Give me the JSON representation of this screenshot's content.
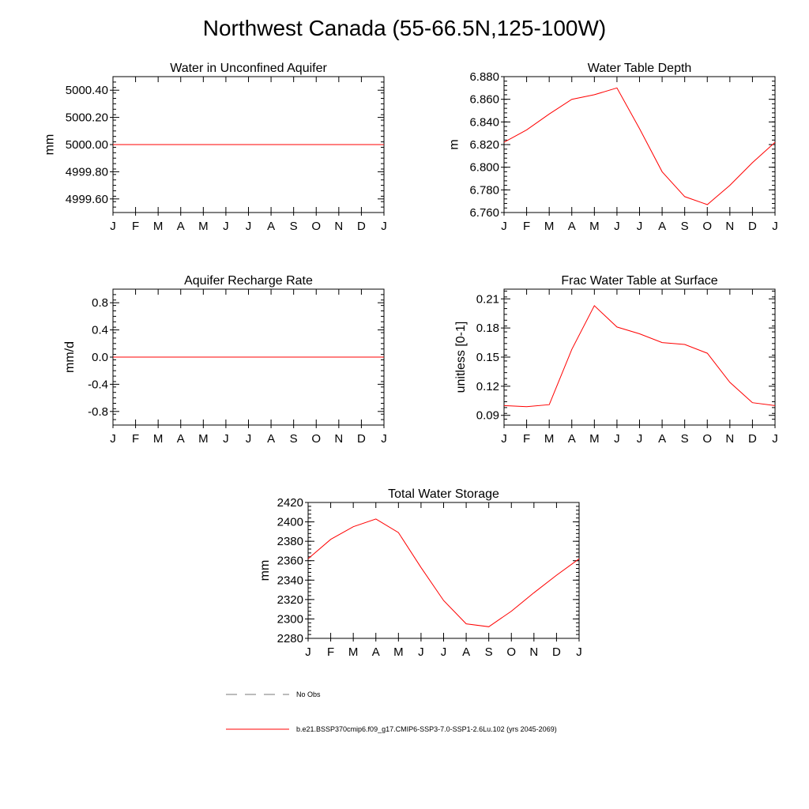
{
  "title": "Northwest Canada (55-66.5N,125-100W)",
  "months": [
    "J",
    "F",
    "M",
    "A",
    "M",
    "J",
    "J",
    "A",
    "S",
    "O",
    "N",
    "D",
    "J"
  ],
  "series_color": "#ff0000",
  "obs_color": "#777777",
  "legend": {
    "obs_label": "No Obs",
    "model_label": "b.e21.BSSP370cmip6.f09_g17.CMIP6-SSP3-7.0-SSP1-2.6Lu.102 (yrs 2045-2069)"
  },
  "chart_data": [
    {
      "type": "line",
      "title": "Water in Unconfined Aquifer",
      "ylabel": "mm",
      "ylim": [
        4999.5,
        5000.5
      ],
      "yticks": [
        4999.6,
        4999.8,
        5000.0,
        5000.2,
        5000.4
      ],
      "ytick_labels": [
        "4999.60",
        "4999.80",
        "5000.00",
        "5000.20",
        "5000.40"
      ],
      "series": [
        {
          "values": [
            5000,
            5000,
            5000,
            5000,
            5000,
            5000,
            5000,
            5000,
            5000,
            5000,
            5000,
            5000,
            5000
          ]
        }
      ]
    },
    {
      "type": "line",
      "title": "Water Table Depth",
      "ylabel": "m",
      "ylim": [
        6.76,
        6.88
      ],
      "yticks": [
        6.76,
        6.78,
        6.8,
        6.82,
        6.84,
        6.86,
        6.88
      ],
      "ytick_labels": [
        "6.760",
        "6.780",
        "6.800",
        "6.820",
        "6.840",
        "6.860",
        "6.880"
      ],
      "series": [
        {
          "values": [
            6.822,
            6.833,
            6.847,
            6.86,
            6.864,
            6.87,
            6.834,
            6.796,
            6.774,
            6.767,
            6.784,
            6.804,
            6.822
          ]
        }
      ]
    },
    {
      "type": "line",
      "title": "Aquifer Recharge Rate",
      "ylabel": "mm/d",
      "ylim": [
        -1.0,
        1.0
      ],
      "yticks": [
        -0.8,
        -0.4,
        0.0,
        0.4,
        0.8
      ],
      "ytick_labels": [
        "-0.8",
        "-0.4",
        "0.0",
        "0.4",
        "0.8"
      ],
      "series": [
        {
          "values": [
            0,
            0,
            0,
            0,
            0,
            0,
            0,
            0,
            0,
            0,
            0,
            0,
            0
          ]
        }
      ]
    },
    {
      "type": "line",
      "title": "Frac Water Table at Surface",
      "ylabel": "unitless [0-1]",
      "ylim": [
        0.08,
        0.22
      ],
      "yticks": [
        0.09,
        0.12,
        0.15,
        0.18,
        0.21
      ],
      "ytick_labels": [
        "0.09",
        "0.12",
        "0.15",
        "0.18",
        "0.21"
      ],
      "series": [
        {
          "values": [
            0.1,
            0.099,
            0.101,
            0.158,
            0.203,
            0.181,
            0.174,
            0.165,
            0.163,
            0.154,
            0.124,
            0.103,
            0.1
          ]
        }
      ]
    },
    {
      "type": "line",
      "title": "Total Water Storage",
      "ylabel": "mm",
      "ylim": [
        2280,
        2420
      ],
      "yticks": [
        2280,
        2300,
        2320,
        2340,
        2360,
        2380,
        2400,
        2420
      ],
      "ytick_labels": [
        "2280",
        "2300",
        "2320",
        "2340",
        "2360",
        "2380",
        "2400",
        "2420"
      ],
      "series": [
        {
          "values": [
            2362,
            2382,
            2395,
            2403,
            2389,
            2353,
            2319,
            2295,
            2292,
            2308,
            2327,
            2345,
            2362
          ]
        }
      ]
    }
  ]
}
